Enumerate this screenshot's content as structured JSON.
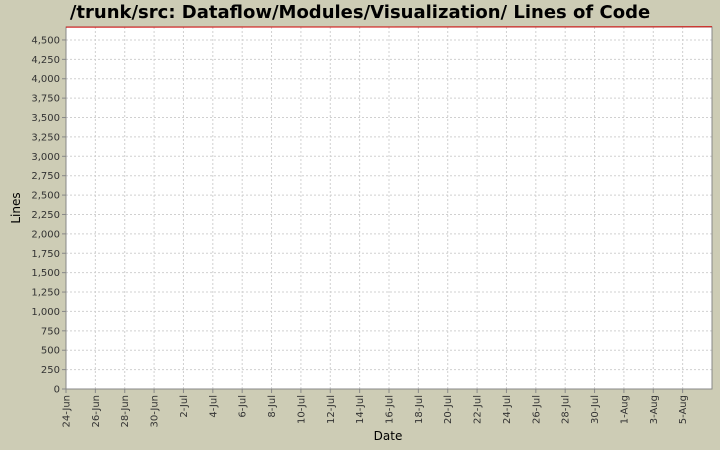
{
  "chart_data": {
    "type": "line",
    "title": "/trunk/src: Dataflow/Modules/Visualization/ Lines of Code",
    "x_label": "Date",
    "y_label": "Lines",
    "x": [
      "24-Jun",
      "7-Aug"
    ],
    "series": [
      {
        "name": "Lines",
        "color": "#cc0000",
        "values": [
          4665,
          4670
        ]
      }
    ],
    "xlim": [
      "24-Jun",
      "7-Aug"
    ],
    "xticks": [
      "24-Jun",
      "26-Jun",
      "28-Jun",
      "30-Jun",
      "2-Jul",
      "4-Jul",
      "6-Jul",
      "8-Jul",
      "10-Jul",
      "12-Jul",
      "14-Jul",
      "16-Jul",
      "18-Jul",
      "20-Jul",
      "22-Jul",
      "24-Jul",
      "26-Jul",
      "28-Jul",
      "30-Jul",
      "1-Aug",
      "3-Aug",
      "5-Aug"
    ],
    "ylim": [
      0,
      4667
    ],
    "yticks": [
      0,
      250,
      500,
      750,
      {
        "value": 1000,
        "label": "1,000"
      },
      {
        "value": 1250,
        "label": "1,250"
      },
      {
        "value": 1500,
        "label": "1,500"
      },
      {
        "value": 1750,
        "label": "1,750"
      },
      {
        "value": 2000,
        "label": "2,000"
      },
      {
        "value": 2250,
        "label": "2,250"
      },
      {
        "value": 2500,
        "label": "2,500"
      },
      {
        "value": 2750,
        "label": "2,750"
      },
      {
        "value": 3000,
        "label": "3,000"
      },
      {
        "value": 3250,
        "label": "3,250"
      },
      {
        "value": 3500,
        "label": "3,500"
      },
      {
        "value": 3750,
        "label": "3,750"
      },
      {
        "value": 4000,
        "label": "4,000"
      },
      {
        "value": 4250,
        "label": "4,250"
      },
      {
        "value": 4500,
        "label": "4,500"
      }
    ],
    "grid": true
  }
}
